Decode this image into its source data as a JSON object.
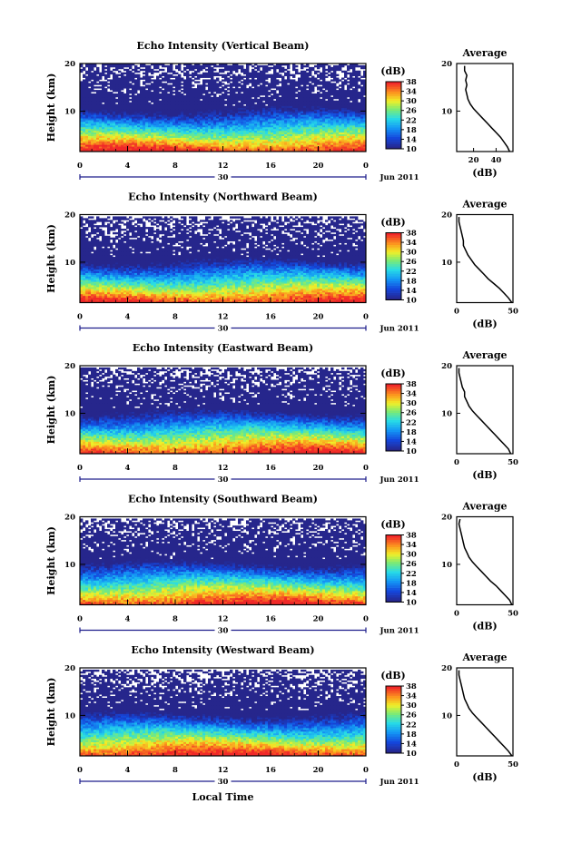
{
  "chart_data": [
    {
      "type": "heatmap",
      "title": "Echo Intensity (Vertical Beam)",
      "ylabel": "Height (km)",
      "xlabel": "",
      "x_ticks": [
        "0",
        "4",
        "8",
        "12",
        "16",
        "20",
        "0"
      ],
      "y_ticks": [
        "20",
        "10"
      ],
      "xlim": [
        0,
        24
      ],
      "ylim": [
        1.5,
        20
      ],
      "date_label": "30",
      "month_label": "Jun 2011",
      "colorbar": {
        "label": "(dB)",
        "ticks": [
          "38",
          "34",
          "30",
          "26",
          "22",
          "18",
          "14",
          "10"
        ],
        "range": [
          10,
          38
        ]
      },
      "average": {
        "title": "Average",
        "xlabel": "(dB)",
        "x_ticks": [
          "20",
          "40"
        ],
        "y_ticks": [
          "20",
          "10"
        ],
        "xlim": [
          5,
          55
        ],
        "profile": [
          [
            52,
            1.5
          ],
          [
            50,
            2.5
          ],
          [
            47,
            3.5
          ],
          [
            44,
            4.5
          ],
          [
            40,
            5.5
          ],
          [
            36,
            6.5
          ],
          [
            32,
            7.5
          ],
          [
            28,
            8.5
          ],
          [
            24,
            9.5
          ],
          [
            20,
            10.5
          ],
          [
            17,
            11.5
          ],
          [
            15,
            12.5
          ],
          [
            14,
            13.5
          ],
          [
            13,
            14.5
          ],
          [
            14,
            15.5
          ],
          [
            13,
            16.5
          ],
          [
            14,
            17.5
          ],
          [
            12,
            18.5
          ],
          [
            12,
            19.5
          ]
        ]
      }
    },
    {
      "type": "heatmap",
      "title": "Echo Intensity (Northward Beam)",
      "ylabel": "Height (km)",
      "xlabel": "",
      "x_ticks": [
        "0",
        "4",
        "8",
        "12",
        "16",
        "20",
        "0"
      ],
      "y_ticks": [
        "20",
        "10"
      ],
      "xlim": [
        0,
        24
      ],
      "ylim": [
        1.5,
        20
      ],
      "date_label": "30",
      "month_label": "Jun 2011",
      "colorbar": {
        "label": "(dB)",
        "ticks": [
          "38",
          "34",
          "30",
          "26",
          "22",
          "18",
          "14",
          "10"
        ],
        "range": [
          10,
          38
        ]
      },
      "average": {
        "title": "Average",
        "xlabel": "(dB)",
        "x_ticks": [
          "0",
          "50"
        ],
        "y_ticks": [
          "20",
          "10"
        ],
        "xlim": [
          0,
          50
        ],
        "profile": [
          [
            49,
            1.5
          ],
          [
            46,
            2.5
          ],
          [
            42,
            3.5
          ],
          [
            38,
            4.5
          ],
          [
            33,
            5.5
          ],
          [
            28,
            6.5
          ],
          [
            24,
            7.5
          ],
          [
            20,
            8.5
          ],
          [
            16,
            9.5
          ],
          [
            13,
            10.5
          ],
          [
            10,
            11.5
          ],
          [
            8,
            12.5
          ],
          [
            6,
            13.5
          ],
          [
            6,
            14.5
          ],
          [
            5,
            15.5
          ],
          [
            4,
            16.5
          ],
          [
            3,
            17.5
          ],
          [
            2,
            18.5
          ],
          [
            2,
            19.5
          ]
        ]
      }
    },
    {
      "type": "heatmap",
      "title": "Echo Intensity (Eastward Beam)",
      "ylabel": "Height (km)",
      "xlabel": "",
      "x_ticks": [
        "0",
        "4",
        "8",
        "12",
        "16",
        "20",
        "0"
      ],
      "y_ticks": [
        "20",
        "10"
      ],
      "xlim": [
        0,
        24
      ],
      "ylim": [
        1.5,
        20
      ],
      "date_label": "30",
      "month_label": "Jun 2011",
      "colorbar": {
        "label": "(dB)",
        "ticks": [
          "38",
          "34",
          "30",
          "26",
          "22",
          "18",
          "14",
          "10"
        ],
        "range": [
          10,
          38
        ]
      },
      "average": {
        "title": "Average",
        "xlabel": "(dB)",
        "x_ticks": [
          "0",
          "50"
        ],
        "y_ticks": [
          "20",
          "10"
        ],
        "xlim": [
          0,
          50
        ],
        "profile": [
          [
            48,
            1.5
          ],
          [
            46,
            2.5
          ],
          [
            42,
            3.5
          ],
          [
            38,
            4.5
          ],
          [
            34,
            5.5
          ],
          [
            30,
            6.5
          ],
          [
            26,
            7.5
          ],
          [
            22,
            8.5
          ],
          [
            18,
            9.5
          ],
          [
            14,
            10.5
          ],
          [
            11,
            11.5
          ],
          [
            9,
            12.5
          ],
          [
            7,
            13.5
          ],
          [
            7,
            14.5
          ],
          [
            5,
            15.5
          ],
          [
            4,
            16.5
          ],
          [
            3,
            17.5
          ],
          [
            2,
            18.5
          ],
          [
            2,
            19.5
          ]
        ]
      }
    },
    {
      "type": "heatmap",
      "title": "Echo Intensity (Southward Beam)",
      "ylabel": "Height (km)",
      "xlabel": "",
      "x_ticks": [
        "0",
        "4",
        "8",
        "12",
        "16",
        "20",
        "0"
      ],
      "y_ticks": [
        "20",
        "10"
      ],
      "xlim": [
        0,
        24
      ],
      "ylim": [
        1.5,
        20
      ],
      "date_label": "30",
      "month_label": "Jun 2011",
      "colorbar": {
        "label": "(dB)",
        "ticks": [
          "38",
          "34",
          "30",
          "26",
          "22",
          "18",
          "14",
          "10"
        ],
        "range": [
          10,
          38
        ]
      },
      "average": {
        "title": "Average",
        "xlabel": "(dB)",
        "x_ticks": [
          "0",
          "50"
        ],
        "y_ticks": [
          "20",
          "10"
        ],
        "xlim": [
          0,
          50
        ],
        "profile": [
          [
            49,
            1.5
          ],
          [
            47,
            2.5
          ],
          [
            43,
            3.5
          ],
          [
            39,
            4.5
          ],
          [
            35,
            5.5
          ],
          [
            30,
            6.5
          ],
          [
            26,
            7.5
          ],
          [
            22,
            8.5
          ],
          [
            18,
            9.5
          ],
          [
            14,
            10.5
          ],
          [
            11,
            11.5
          ],
          [
            9,
            12.5
          ],
          [
            7,
            13.5
          ],
          [
            6,
            14.5
          ],
          [
            5,
            15.5
          ],
          [
            4,
            16.5
          ],
          [
            3,
            17.5
          ],
          [
            2,
            18.5
          ],
          [
            3,
            19.5
          ]
        ]
      }
    },
    {
      "type": "heatmap",
      "title": "Echo Intensity (Westward Beam)",
      "ylabel": "Height (km)",
      "xlabel": "Local Time",
      "x_ticks": [
        "0",
        "4",
        "8",
        "12",
        "16",
        "20",
        "0"
      ],
      "y_ticks": [
        "20",
        "10"
      ],
      "xlim": [
        0,
        24
      ],
      "ylim": [
        1.5,
        20
      ],
      "date_label": "30",
      "month_label": "Jun 2011",
      "colorbar": {
        "label": "(dB)",
        "ticks": [
          "38",
          "34",
          "30",
          "26",
          "22",
          "18",
          "14",
          "10"
        ],
        "range": [
          10,
          38
        ]
      },
      "average": {
        "title": "Average",
        "xlabel": "(dB)",
        "x_ticks": [
          "0",
          "50"
        ],
        "y_ticks": [
          "20",
          "10"
        ],
        "xlim": [
          0,
          50
        ],
        "profile": [
          [
            49,
            1.5
          ],
          [
            46,
            2.5
          ],
          [
            42,
            3.5
          ],
          [
            38,
            4.5
          ],
          [
            34,
            5.5
          ],
          [
            30,
            6.5
          ],
          [
            26,
            7.5
          ],
          [
            22,
            8.5
          ],
          [
            18,
            9.5
          ],
          [
            14,
            10.5
          ],
          [
            11,
            11.5
          ],
          [
            9,
            12.5
          ],
          [
            7,
            13.5
          ],
          [
            6,
            14.5
          ],
          [
            5,
            15.5
          ],
          [
            4,
            16.5
          ],
          [
            3,
            17.5
          ],
          [
            2,
            18.5
          ],
          [
            2,
            19.5
          ]
        ]
      }
    }
  ]
}
